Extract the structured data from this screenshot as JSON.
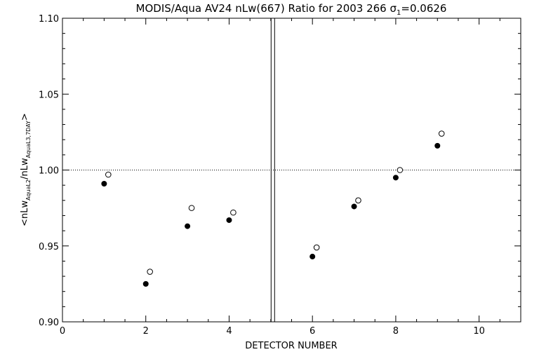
{
  "chart_data": {
    "type": "scatter",
    "title": {
      "prefix": "MODIS/Aqua AV24 nLw(667) Ratio for 2003 266 ",
      "sigma_symbol": "σ",
      "sigma_subscript": "1",
      "sigma_value": "=0.0626"
    },
    "xlabel": "DETECTOR NUMBER",
    "ylabel": {
      "open": "<nLw",
      "sub1": "AquaL2",
      "mid": "/nLw",
      "sub2": "AquaL3,7DAY",
      "close": ">"
    },
    "xlim": [
      0,
      11
    ],
    "ylim": [
      0.9,
      1.1
    ],
    "x_ticks": [
      0,
      2,
      4,
      6,
      8,
      10
    ],
    "x_tick_labels": [
      "0",
      "2",
      "4",
      "6",
      "8",
      "10"
    ],
    "x_minor_step": 0.5,
    "y_ticks": [
      0.9,
      0.95,
      1.0,
      1.05,
      1.1
    ],
    "y_tick_labels": [
      "0.90",
      "0.95",
      "1.00",
      "1.05",
      "1.10"
    ],
    "y_minor_step": 0.01,
    "reference_line_y": 1.0,
    "divider_x": 5.05,
    "series": [
      {
        "marker": "filled-circle",
        "x": [
          1,
          2,
          3,
          4,
          6,
          7,
          8,
          9
        ],
        "y": [
          0.991,
          0.925,
          0.963,
          0.967,
          0.943,
          0.976,
          0.995,
          1.016
        ]
      },
      {
        "marker": "open-circle",
        "x": [
          1.1,
          2.1,
          3.1,
          4.1,
          6.1,
          7.1,
          8.1,
          9.1
        ],
        "y": [
          0.997,
          0.933,
          0.975,
          0.972,
          0.949,
          0.98,
          1.0,
          1.024
        ]
      }
    ]
  }
}
